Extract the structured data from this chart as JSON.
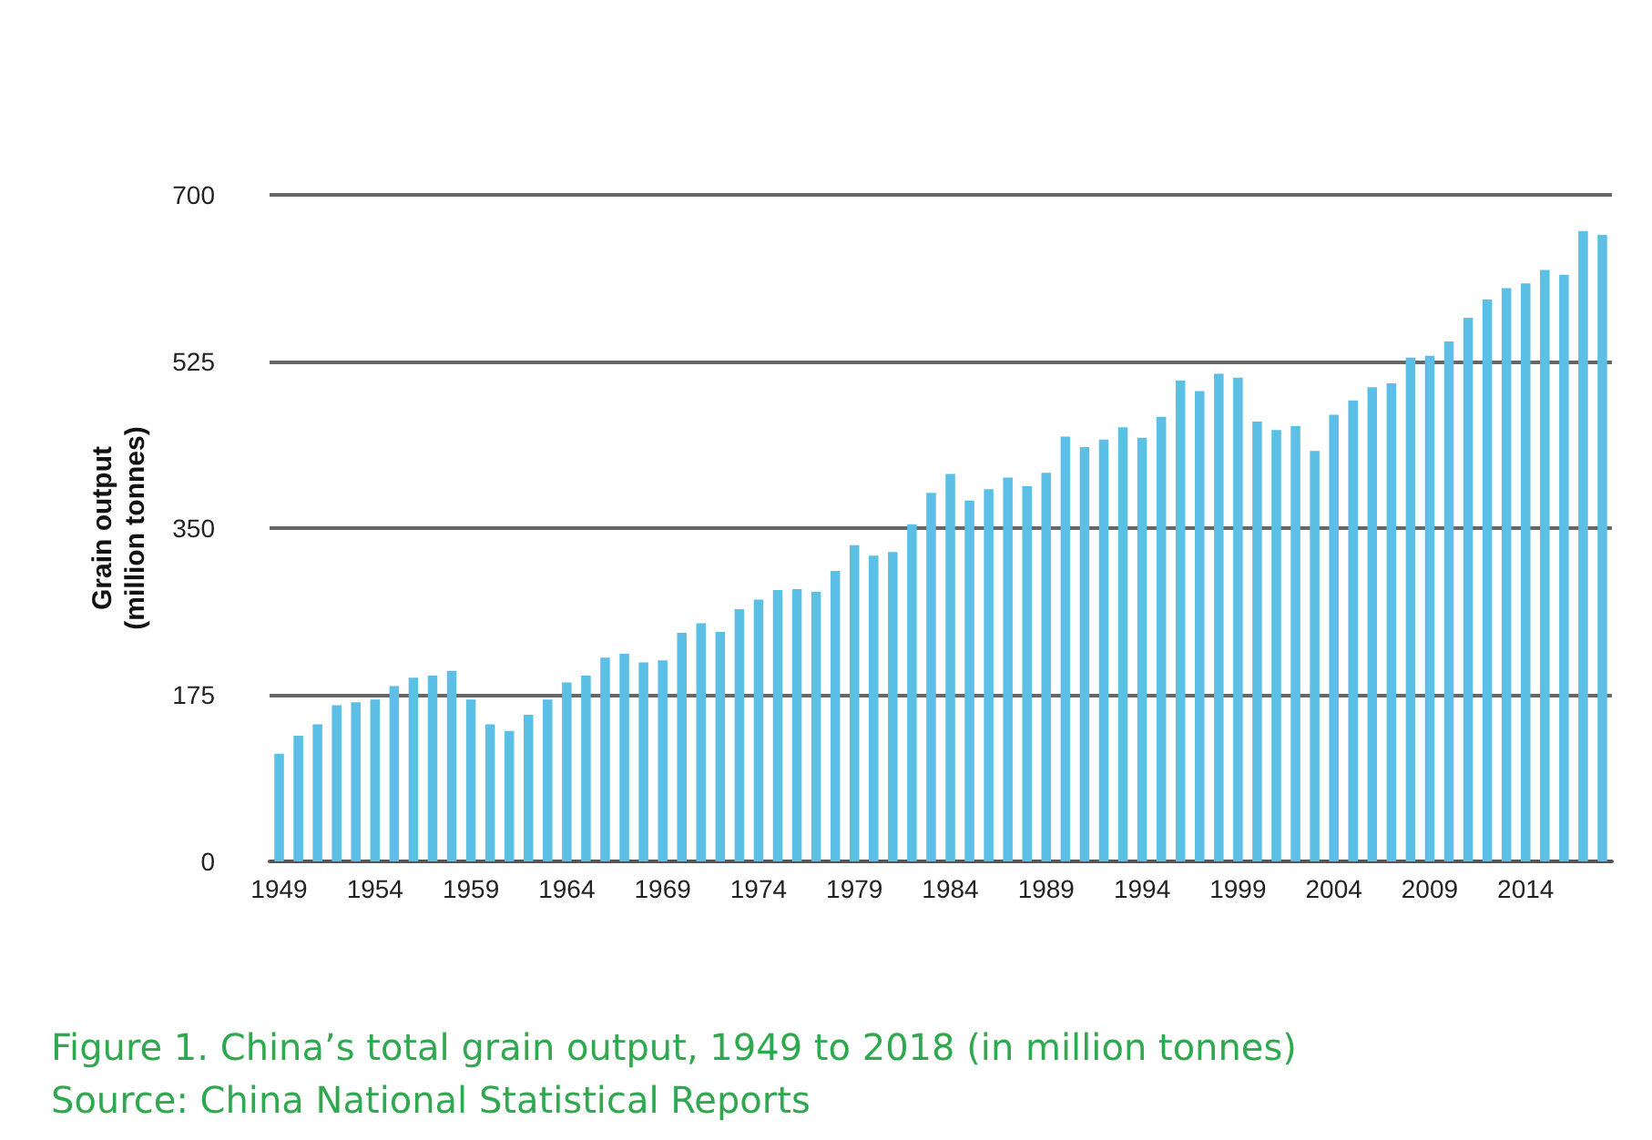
{
  "chart_data": {
    "type": "bar",
    "ylabel": "Grain output\n(million tonnes)",
    "categories": [
      "1949",
      null,
      null,
      null,
      null,
      "1954",
      null,
      null,
      null,
      null,
      "1959",
      null,
      null,
      null,
      null,
      "1964",
      null,
      null,
      null,
      null,
      "1969",
      null,
      null,
      null,
      null,
      "1974",
      null,
      null,
      null,
      null,
      "1979",
      null,
      null,
      null,
      null,
      "1984",
      null,
      null,
      null,
      null,
      "1989",
      null,
      null,
      null,
      null,
      "1994",
      null,
      null,
      null,
      null,
      "1999",
      null,
      null,
      null,
      null,
      "2004",
      null,
      null,
      null,
      null,
      "2009",
      null,
      null,
      null,
      null,
      "2014",
      null,
      null,
      null,
      null
    ],
    "values": [
      113,
      132,
      144,
      164,
      167,
      170,
      184,
      193,
      195,
      200,
      170,
      144,
      137,
      154,
      170,
      188,
      195,
      214,
      218,
      209,
      211,
      240,
      250,
      241,
      265,
      275,
      285,
      286,
      283,
      305,
      332,
      321,
      325,
      354,
      387,
      407,
      379,
      391,
      403,
      394,
      408,
      446,
      435,
      443,
      456,
      445,
      467,
      505,
      494,
      512,
      508,
      462,
      453,
      457,
      431,
      469,
      484,
      498,
      502,
      529,
      531,
      546,
      571,
      590,
      602,
      607,
      621,
      616,
      662,
      658
    ],
    "color": "#5bbfe6",
    "ylim": [
      0,
      700
    ],
    "yticks": [
      0,
      175,
      350,
      525,
      700
    ],
    "grid": "y",
    "annotations": [
      "Figure 1. China’s total grain output, 1949 to 2018 (in million tonnes)",
      "Source: China National Statistical Reports"
    ]
  }
}
